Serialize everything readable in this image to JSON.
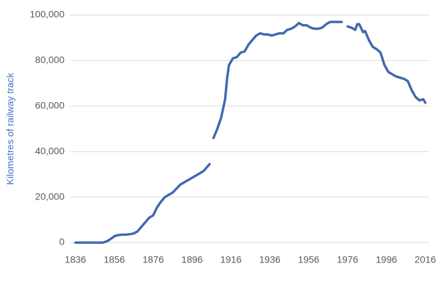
{
  "chart_data": {
    "type": "line",
    "y_label": "Kilometres of railway track",
    "x": [
      1836,
      1840,
      1845,
      1850,
      1852,
      1854,
      1856,
      1858,
      1860,
      1862,
      1864,
      1866,
      1868,
      1870,
      1872,
      1874,
      1876,
      1878,
      1880,
      1882,
      1886,
      1890,
      1894,
      1898,
      1902,
      1905,
      1906,
      1907,
      1909,
      1911,
      1913,
      1914,
      1915,
      1917,
      1919,
      1921,
      1923,
      1925,
      1927,
      1929,
      1931,
      1933,
      1935,
      1937,
      1939,
      1941,
      1943,
      1945,
      1947,
      1949,
      1951,
      1953,
      1955,
      1957,
      1959,
      1961,
      1963,
      1965,
      1967,
      1969,
      1973,
      1975,
      1976,
      1978,
      1980,
      1981,
      1982,
      1984,
      1985,
      1987,
      1989,
      1991,
      1993,
      1995,
      1997,
      1999,
      2001,
      2003,
      2005,
      2007,
      2009,
      2011,
      2013,
      2015,
      2016
    ],
    "series": [
      {
        "name": "Kilometres of railway track",
        "color": "#4068b0",
        "values": [
          0,
          0,
          0,
          0,
          500,
          1500,
          2800,
          3300,
          3500,
          3500,
          3700,
          4000,
          5000,
          7000,
          9000,
          11000,
          12000,
          15500,
          18000,
          20000,
          22000,
          25500,
          27500,
          29500,
          31500,
          34500,
          null,
          46000,
          50000,
          55000,
          63000,
          72000,
          78000,
          81000,
          81500,
          83500,
          84000,
          87000,
          89000,
          91000,
          92000,
          91500,
          91500,
          91000,
          91500,
          92000,
          92000,
          93500,
          94000,
          95000,
          96500,
          95500,
          95500,
          94500,
          94000,
          94000,
          94500,
          96000,
          97000,
          97000,
          97000,
          null,
          95000,
          94500,
          93500,
          96000,
          96000,
          92500,
          93000,
          89000,
          86000,
          85000,
          83500,
          78000,
          75000,
          74000,
          73000,
          72500,
          72000,
          71000,
          67000,
          64000,
          62500,
          63000,
          61500
        ]
      }
    ],
    "xlim": [
      1836,
      2016
    ],
    "xticks": [
      1836,
      1856,
      1876,
      1896,
      1916,
      1936,
      1956,
      1976,
      1996,
      2016
    ],
    "ylim": [
      0,
      100000
    ],
    "yticks": [
      0,
      {
        "value": 20000,
        "label": "20,000"
      },
      {
        "value": 40000,
        "label": "40,000"
      },
      {
        "value": 60000,
        "label": "60,000"
      },
      {
        "value": 80000,
        "label": "80,000"
      },
      {
        "value": 100000,
        "label": "100,000"
      }
    ],
    "grid": true
  }
}
